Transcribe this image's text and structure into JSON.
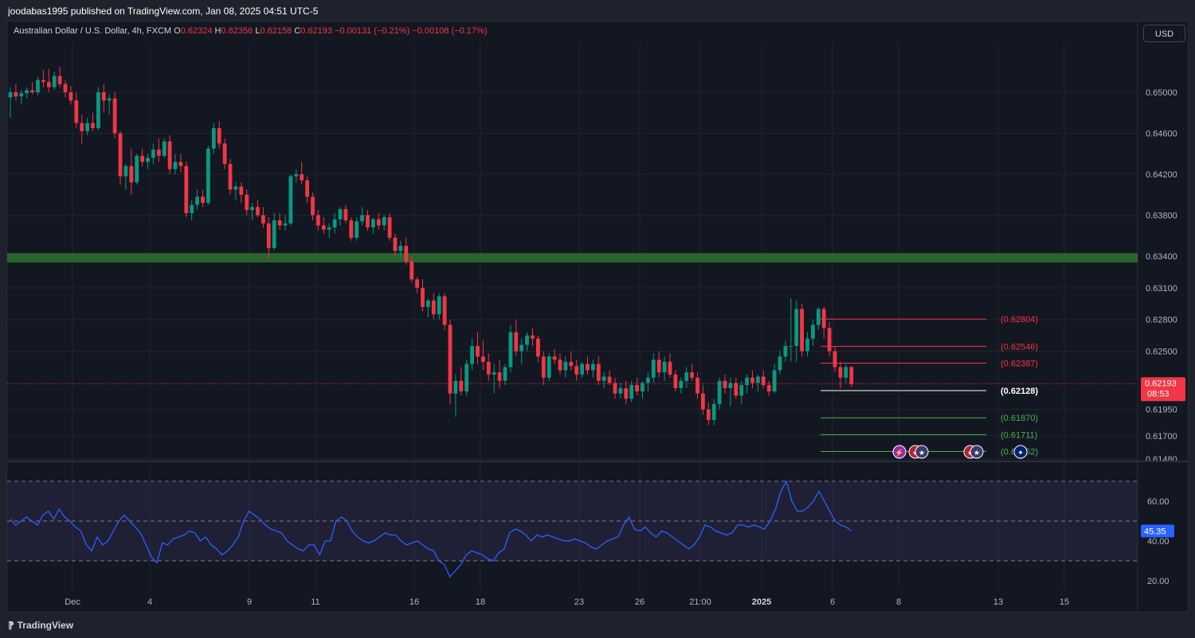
{
  "header": {
    "publish_line": "joodabas1995 published on TradingView.com, Jan 08, 2025 04:51 UTC-5"
  },
  "legend": {
    "symbol": "Australian Dollar / U.S. Dollar, 4h, FXCM",
    "open_label": "O",
    "open": "0.62324",
    "high_label": "H",
    "high": "0.62356",
    "low_label": "L",
    "low": "0.62158",
    "close_label": "C",
    "close": "0.62193",
    "change": "−0.00131 (−0.21%)",
    "change2": "−0.00108 (−0.17%)"
  },
  "currency_button": "USD",
  "footer": {
    "brand": "TradingView",
    "brand_icon": "tradingview-logo-icon"
  },
  "colors": {
    "background": "#131722",
    "up": "#089981",
    "down": "#f23645",
    "support_zone": "#2e6b2e",
    "rsi_line": "#2962ff",
    "rsi_band": "#7e57c2",
    "grid": "#1f2430"
  },
  "chart_data": [
    {
      "type": "candlestick",
      "yaxis_ticks": [
        "0.65000",
        "0.64600",
        "0.64200",
        "0.63800",
        "0.63400",
        "0.63100",
        "0.62800",
        "0.62500",
        "0.61950",
        "0.61700",
        "0.61480"
      ],
      "xaxis_ticks": [
        "Dec",
        "4",
        "9",
        "11",
        "16",
        "18",
        "23",
        "26",
        "21:00",
        "2025",
        "6",
        "8",
        "13",
        "15"
      ],
      "current_price": "0.62193",
      "countdown": "08:53",
      "support_zone": [
        0.6334,
        0.6343
      ],
      "levels": [
        {
          "label": "(0.62804)",
          "value": 0.62804,
          "color": "#f23645"
        },
        {
          "label": "(0.62546)",
          "value": 0.62546,
          "color": "#f23645"
        },
        {
          "label": "(0.62387)",
          "value": 0.62387,
          "color": "#f23645"
        },
        {
          "label": "(0.62128)",
          "value": 0.62128,
          "color": "#ffffff"
        },
        {
          "label": "(0.61870)",
          "value": 0.6187,
          "color": "#4caf50"
        },
        {
          "label": "(0.61711)",
          "value": 0.61711,
          "color": "#4caf50"
        },
        {
          "label": "(0.61552)",
          "value": 0.61552,
          "color": "#4caf50"
        }
      ],
      "ohlc": [
        [
          0.6495,
          0.6505,
          0.6475,
          0.65
        ],
        [
          0.65,
          0.6508,
          0.6492,
          0.6496
        ],
        [
          0.6496,
          0.6502,
          0.6488,
          0.6499
        ],
        [
          0.6499,
          0.6505,
          0.6494,
          0.6502
        ],
        [
          0.6502,
          0.651,
          0.6498,
          0.65
        ],
        [
          0.65,
          0.6515,
          0.6497,
          0.6512
        ],
        [
          0.6512,
          0.6522,
          0.6505,
          0.651
        ],
        [
          0.651,
          0.6523,
          0.65,
          0.6505
        ],
        [
          0.6505,
          0.652,
          0.6502,
          0.6516
        ],
        [
          0.6516,
          0.6525,
          0.6505,
          0.6508
        ],
        [
          0.6508,
          0.6512,
          0.6495,
          0.65
        ],
        [
          0.65,
          0.6506,
          0.6488,
          0.6492
        ],
        [
          0.6492,
          0.65,
          0.6465,
          0.647
        ],
        [
          0.647,
          0.6478,
          0.645,
          0.6462
        ],
        [
          0.6462,
          0.6475,
          0.6458,
          0.647
        ],
        [
          0.647,
          0.648,
          0.6462,
          0.6465
        ],
        [
          0.6465,
          0.6505,
          0.6463,
          0.65
        ],
        [
          0.65,
          0.6508,
          0.648,
          0.6492
        ],
        [
          0.6492,
          0.6498,
          0.6478,
          0.6494
        ],
        [
          0.6494,
          0.65,
          0.6455,
          0.646
        ],
        [
          0.646,
          0.6462,
          0.641,
          0.6418
        ],
        [
          0.6418,
          0.643,
          0.6405,
          0.6428
        ],
        [
          0.6428,
          0.6445,
          0.64,
          0.6412
        ],
        [
          0.6412,
          0.644,
          0.641,
          0.6438
        ],
        [
          0.6438,
          0.6445,
          0.6428,
          0.6432
        ],
        [
          0.6432,
          0.644,
          0.6425,
          0.6436
        ],
        [
          0.6436,
          0.645,
          0.643,
          0.6444
        ],
        [
          0.6444,
          0.6455,
          0.6432,
          0.6438
        ],
        [
          0.6438,
          0.6455,
          0.6436,
          0.6452
        ],
        [
          0.6452,
          0.6458,
          0.642,
          0.6425
        ],
        [
          0.6425,
          0.644,
          0.642,
          0.6432
        ],
        [
          0.6432,
          0.644,
          0.6422,
          0.6428
        ],
        [
          0.6428,
          0.6432,
          0.6378,
          0.6382
        ],
        [
          0.6382,
          0.6395,
          0.6375,
          0.639
        ],
        [
          0.639,
          0.6405,
          0.6385,
          0.6398
        ],
        [
          0.6398,
          0.6405,
          0.6388,
          0.6392
        ],
        [
          0.6392,
          0.6448,
          0.639,
          0.6445
        ],
        [
          0.6445,
          0.647,
          0.644,
          0.6465
        ],
        [
          0.6465,
          0.6472,
          0.6445,
          0.645
        ],
        [
          0.645,
          0.6455,
          0.6425,
          0.643
        ],
        [
          0.643,
          0.6435,
          0.64,
          0.6405
        ],
        [
          0.6405,
          0.6412,
          0.6395,
          0.6408
        ],
        [
          0.6408,
          0.6412,
          0.6392,
          0.64
        ],
        [
          0.64,
          0.6405,
          0.638,
          0.6385
        ],
        [
          0.6385,
          0.6392,
          0.6375,
          0.6388
        ],
        [
          0.6388,
          0.6395,
          0.6378,
          0.638
        ],
        [
          0.638,
          0.6388,
          0.6368,
          0.6372
        ],
        [
          0.6372,
          0.6378,
          0.6338,
          0.6348
        ],
        [
          0.6348,
          0.6382,
          0.6346,
          0.6375
        ],
        [
          0.6375,
          0.6382,
          0.6366,
          0.637
        ],
        [
          0.637,
          0.638,
          0.6365,
          0.6372
        ],
        [
          0.6372,
          0.642,
          0.637,
          0.6418
        ],
        [
          0.6418,
          0.6425,
          0.6412,
          0.642
        ],
        [
          0.642,
          0.6432,
          0.641,
          0.6414
        ],
        [
          0.6414,
          0.6418,
          0.6392,
          0.6398
        ],
        [
          0.6398,
          0.6402,
          0.6375,
          0.638
        ],
        [
          0.638,
          0.6385,
          0.6365,
          0.637
        ],
        [
          0.637,
          0.6378,
          0.6362,
          0.6366
        ],
        [
          0.6366,
          0.6372,
          0.6358,
          0.6368
        ],
        [
          0.6368,
          0.6382,
          0.6362,
          0.6376
        ],
        [
          0.6376,
          0.6388,
          0.637,
          0.6386
        ],
        [
          0.6386,
          0.639,
          0.6372,
          0.6375
        ],
        [
          0.6375,
          0.6378,
          0.6355,
          0.6358
        ],
        [
          0.6358,
          0.6378,
          0.6355,
          0.6374
        ],
        [
          0.6374,
          0.6388,
          0.637,
          0.638
        ],
        [
          0.638,
          0.6385,
          0.6365,
          0.6368
        ],
        [
          0.6368,
          0.6378,
          0.6362,
          0.6376
        ],
        [
          0.6376,
          0.6382,
          0.6366,
          0.637
        ],
        [
          0.637,
          0.638,
          0.6365,
          0.6378
        ],
        [
          0.6378,
          0.6382,
          0.6355,
          0.6358
        ],
        [
          0.6358,
          0.6362,
          0.634,
          0.6345
        ],
        [
          0.6345,
          0.6355,
          0.6338,
          0.635
        ],
        [
          0.635,
          0.6358,
          0.6332,
          0.6335
        ],
        [
          0.6335,
          0.634,
          0.6315,
          0.6318
        ],
        [
          0.6318,
          0.632,
          0.6305,
          0.631
        ],
        [
          0.631,
          0.6318,
          0.6288,
          0.6292
        ],
        [
          0.6292,
          0.63,
          0.6282,
          0.6298
        ],
        [
          0.6298,
          0.6305,
          0.628,
          0.6285
        ],
        [
          0.6285,
          0.6305,
          0.628,
          0.6302
        ],
        [
          0.6302,
          0.6305,
          0.627,
          0.6275
        ],
        [
          0.6275,
          0.628,
          0.62,
          0.621
        ],
        [
          0.621,
          0.6228,
          0.6188,
          0.6222
        ],
        [
          0.6222,
          0.6235,
          0.6208,
          0.6212
        ],
        [
          0.6212,
          0.6242,
          0.6208,
          0.6238
        ],
        [
          0.6238,
          0.6262,
          0.6232,
          0.6255
        ],
        [
          0.6255,
          0.6268,
          0.6238,
          0.6245
        ],
        [
          0.6245,
          0.626,
          0.6232,
          0.624
        ],
        [
          0.624,
          0.6248,
          0.6222,
          0.6228
        ],
        [
          0.6228,
          0.6238,
          0.621,
          0.623
        ],
        [
          0.623,
          0.6242,
          0.6215,
          0.6222
        ],
        [
          0.6222,
          0.6238,
          0.6218,
          0.6235
        ],
        [
          0.6235,
          0.6275,
          0.623,
          0.6268
        ],
        [
          0.6268,
          0.628,
          0.6245,
          0.625
        ],
        [
          0.625,
          0.6262,
          0.6238,
          0.6256
        ],
        [
          0.6256,
          0.6268,
          0.625,
          0.6265
        ],
        [
          0.6265,
          0.6272,
          0.6255,
          0.6262
        ],
        [
          0.6262,
          0.6265,
          0.624,
          0.6245
        ],
        [
          0.6245,
          0.625,
          0.6218,
          0.6225
        ],
        [
          0.6225,
          0.6248,
          0.6222,
          0.6245
        ],
        [
          0.6245,
          0.6252,
          0.6238,
          0.6242
        ],
        [
          0.6242,
          0.6248,
          0.6228,
          0.6232
        ],
        [
          0.6232,
          0.6245,
          0.6225,
          0.624
        ],
        [
          0.624,
          0.625,
          0.6232,
          0.6236
        ],
        [
          0.6236,
          0.6242,
          0.6222,
          0.6228
        ],
        [
          0.6228,
          0.624,
          0.6225,
          0.6238
        ],
        [
          0.6238,
          0.6245,
          0.6228,
          0.6232
        ],
        [
          0.6232,
          0.6242,
          0.6225,
          0.6238
        ],
        [
          0.6238,
          0.6245,
          0.6218,
          0.6222
        ],
        [
          0.6222,
          0.623,
          0.6215,
          0.6226
        ],
        [
          0.6226,
          0.6232,
          0.6218,
          0.622
        ],
        [
          0.622,
          0.6225,
          0.6205,
          0.621
        ],
        [
          0.621,
          0.622,
          0.6205,
          0.6215
        ],
        [
          0.6215,
          0.6222,
          0.62,
          0.6205
        ],
        [
          0.6205,
          0.6222,
          0.6202,
          0.6218
        ],
        [
          0.6218,
          0.6225,
          0.6208,
          0.6212
        ],
        [
          0.6212,
          0.6222,
          0.6205,
          0.622
        ],
        [
          0.622,
          0.623,
          0.6212,
          0.6225
        ],
        [
          0.6225,
          0.6248,
          0.622,
          0.6242
        ],
        [
          0.6242,
          0.625,
          0.6225,
          0.623
        ],
        [
          0.623,
          0.6245,
          0.6222,
          0.624
        ],
        [
          0.624,
          0.6248,
          0.6225,
          0.6228
        ],
        [
          0.6228,
          0.6232,
          0.6212,
          0.6215
        ],
        [
          0.6215,
          0.6225,
          0.621,
          0.6222
        ],
        [
          0.6222,
          0.6235,
          0.6215,
          0.623
        ],
        [
          0.623,
          0.6238,
          0.6222,
          0.6225
        ],
        [
          0.6225,
          0.623,
          0.6205,
          0.621
        ],
        [
          0.621,
          0.6218,
          0.619,
          0.6195
        ],
        [
          0.6195,
          0.6202,
          0.618,
          0.6185
        ],
        [
          0.6185,
          0.6205,
          0.618,
          0.62
        ],
        [
          0.62,
          0.6225,
          0.6195,
          0.6222
        ],
        [
          0.6222,
          0.6228,
          0.621,
          0.6215
        ],
        [
          0.6215,
          0.6225,
          0.6198,
          0.622
        ],
        [
          0.622,
          0.6225,
          0.6205,
          0.6208
        ],
        [
          0.6208,
          0.6222,
          0.62,
          0.6218
        ],
        [
          0.6218,
          0.6228,
          0.621,
          0.6225
        ],
        [
          0.6225,
          0.6232,
          0.6215,
          0.622
        ],
        [
          0.622,
          0.6228,
          0.6212,
          0.6226
        ],
        [
          0.6226,
          0.6232,
          0.6215,
          0.6218
        ],
        [
          0.6218,
          0.6222,
          0.6208,
          0.6212
        ],
        [
          0.6212,
          0.6238,
          0.621,
          0.6232
        ],
        [
          0.6232,
          0.625,
          0.6228,
          0.6245
        ],
        [
          0.6245,
          0.626,
          0.624,
          0.6255
        ],
        [
          0.6255,
          0.63,
          0.624,
          0.6255
        ],
        [
          0.6255,
          0.6298,
          0.624,
          0.629
        ],
        [
          0.629,
          0.6295,
          0.6245,
          0.625
        ],
        [
          0.625,
          0.6268,
          0.6245,
          0.6262
        ],
        [
          0.6262,
          0.628,
          0.6255,
          0.6275
        ],
        [
          0.6275,
          0.6292,
          0.627,
          0.629
        ],
        [
          0.629,
          0.6292,
          0.6262,
          0.6272
        ],
        [
          0.6272,
          0.6278,
          0.6245,
          0.625
        ],
        [
          0.625,
          0.6255,
          0.623,
          0.6235
        ],
        [
          0.6235,
          0.624,
          0.6215,
          0.6225
        ],
        [
          0.6225,
          0.6238,
          0.622,
          0.6235
        ],
        [
          0.6235,
          0.6236,
          0.6216,
          0.6219
        ]
      ]
    },
    {
      "type": "line",
      "name": "RSI",
      "value_label": "45.35",
      "yaxis_ticks": [
        "60.00",
        "40.00",
        "20.00"
      ],
      "bands": [
        30,
        50,
        70
      ],
      "values": [
        51,
        48,
        50,
        52,
        50,
        48,
        53,
        55,
        51,
        56,
        52,
        50,
        47,
        45,
        38,
        35,
        42,
        38,
        40,
        45,
        50,
        53,
        50,
        47,
        44,
        38,
        32,
        29,
        39,
        38,
        41,
        42,
        43,
        45,
        44,
        40,
        42,
        38,
        36,
        33,
        35,
        38,
        42,
        50,
        55,
        53,
        51,
        48,
        46,
        45,
        44,
        40,
        38,
        36,
        35,
        38,
        38,
        33,
        40,
        40,
        50,
        52,
        50,
        45,
        42,
        40,
        39,
        40,
        42,
        44,
        43,
        43,
        40,
        38,
        39,
        40,
        38,
        36,
        35,
        30,
        28,
        22,
        25,
        28,
        33,
        35,
        34,
        33,
        31,
        30,
        34,
        36,
        44,
        46,
        45,
        43,
        40,
        43,
        42,
        43,
        42,
        41,
        40,
        40,
        41,
        40,
        39,
        37,
        36,
        38,
        40,
        41,
        42,
        48,
        52,
        46,
        45,
        47,
        44,
        42,
        45,
        44,
        42,
        40,
        38,
        36,
        38,
        42,
        48,
        47,
        45,
        44,
        43,
        44,
        48,
        48,
        47,
        48,
        47,
        46,
        50,
        56,
        65,
        70,
        60,
        55,
        55,
        57,
        60,
        65,
        60,
        55,
        50,
        48,
        47,
        45
      ]
    }
  ]
}
